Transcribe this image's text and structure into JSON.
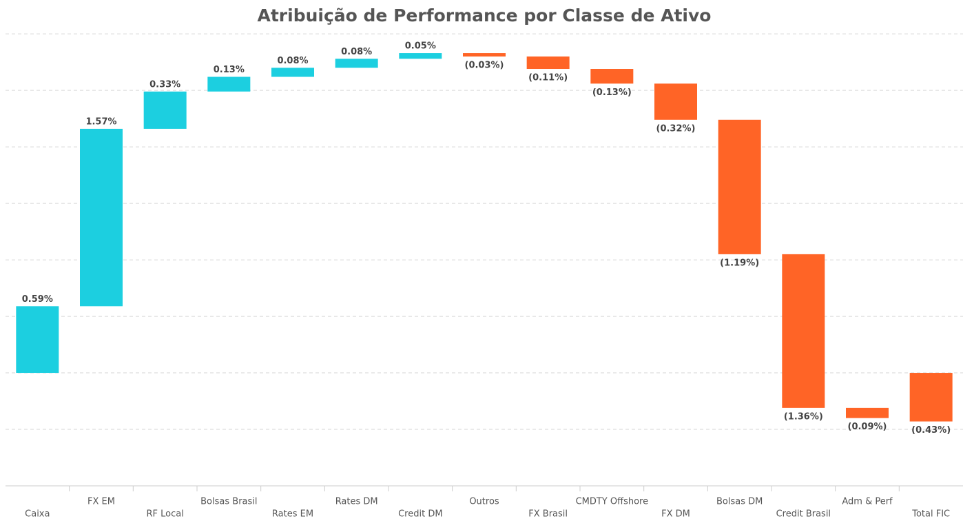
{
  "chart_data": {
    "type": "waterfall",
    "title": "Atribuição de Performance por Classe de Ativo",
    "categories": [
      "Caixa",
      "FX EM",
      "RF Local",
      "Bolsas Brasil",
      "Rates EM",
      "Rates DM",
      "Credit DM",
      "Outros",
      "FX Brasil",
      "CMDTY Offshore",
      "FX DM",
      "Bolsas DM",
      "Credit Brasil",
      "Adm & Perf",
      "Total FIC"
    ],
    "values": [
      0.59,
      1.57,
      0.33,
      0.13,
      0.08,
      0.08,
      0.05,
      -0.03,
      -0.11,
      -0.13,
      -0.32,
      -1.19,
      -1.36,
      -0.09,
      -0.43
    ],
    "value_labels": [
      "0.59%",
      "1.57%",
      "0.33%",
      "0.13%",
      "0.08%",
      "0.08%",
      "0.05%",
      "(0.03%)",
      "(0.11%)",
      "(0.13%)",
      "(0.32%)",
      "(1.19%)",
      "(1.36%)",
      "(0.09%)",
      "(0.43%)"
    ],
    "last_is_total": true,
    "positive_color": "#1ccfe0",
    "negative_color": "#ff6426",
    "ylim": [
      -1,
      3.3
    ],
    "yticks": [
      -0.5,
      0,
      0.5,
      1,
      1.5,
      2,
      2.5,
      3
    ],
    "grid": true
  }
}
